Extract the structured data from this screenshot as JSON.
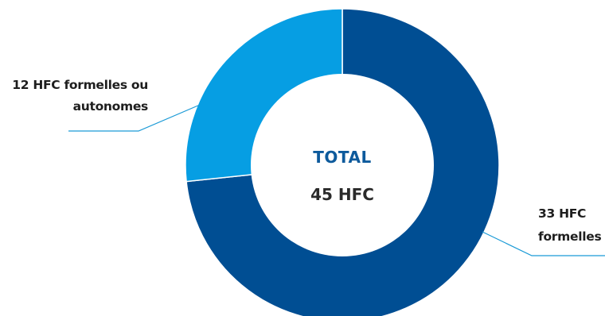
{
  "chart_data": {
    "type": "pie",
    "donut": true,
    "categories": [
      "33 HFC formelles",
      "12 HFC formelles ou autonomes"
    ],
    "values": [
      33,
      12
    ],
    "colors": [
      "#004e93",
      "#069ee3"
    ],
    "slice_labels": [
      [
        "33 HFC",
        "formelles"
      ],
      [
        "12 HFC formelles ou",
        "autonomes"
      ]
    ],
    "center": {
      "title": "TOTAL",
      "value": "45 HFC"
    },
    "legend": "none"
  }
}
